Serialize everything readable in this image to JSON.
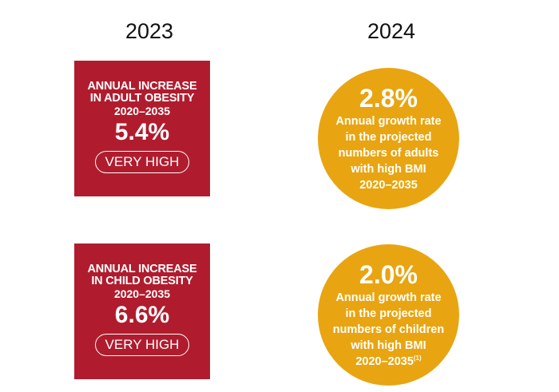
{
  "years": {
    "left": "2023",
    "right": "2024"
  },
  "cards_2023": [
    {
      "title_line1": "ANNUAL INCREASE",
      "title_line2": "IN ADULT OBESITY",
      "range": "2020–2035",
      "value": "5.4%",
      "rating": "VERY HIGH"
    },
    {
      "title_line1": "ANNUAL INCREASE",
      "title_line2": "IN CHILD OBESITY",
      "range": "2020–2035",
      "value": "6.6%",
      "rating": "VERY HIGH"
    }
  ],
  "circles_2024": [
    {
      "value": "2.8%",
      "lines": [
        "Annual growth rate",
        "in the projected",
        "numbers of adults",
        "with high BMI",
        "2020–2035"
      ]
    },
    {
      "value": "2.0%",
      "lines": [
        "Annual growth rate",
        "in  the projected",
        "numbers of children",
        "with high BMI",
        "2020–2035"
      ],
      "footnote": "(1)"
    }
  ],
  "colors": {
    "card_red": "#b01c2e",
    "circle_gold": "#e8a511",
    "text_white": "#ffffff"
  }
}
